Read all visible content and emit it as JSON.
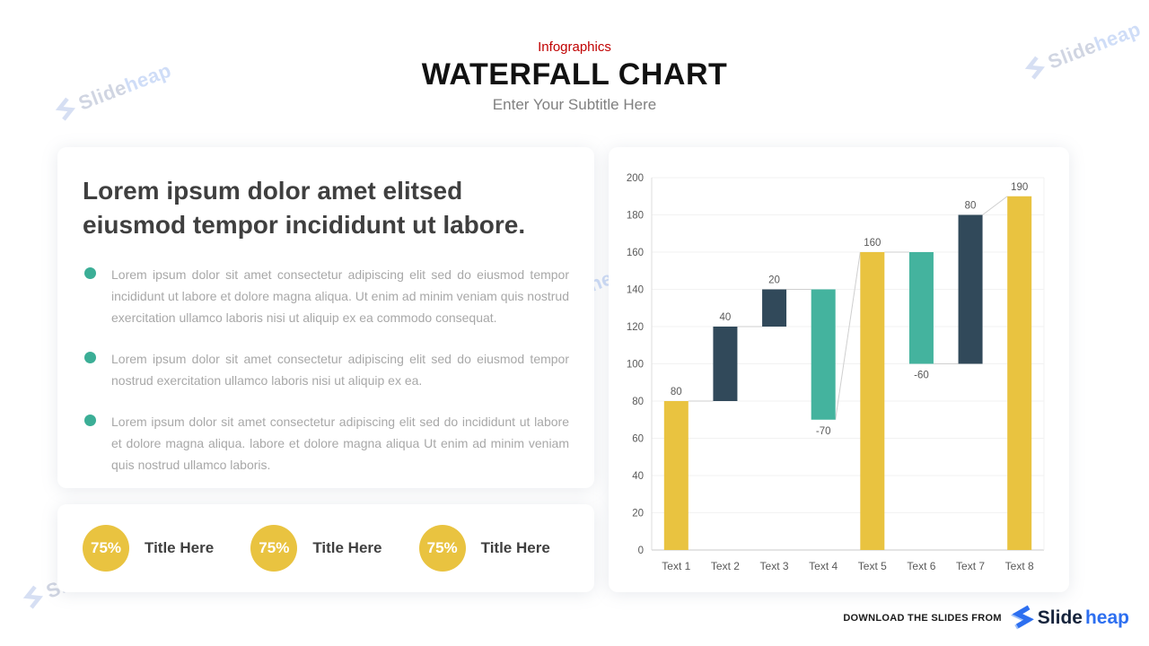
{
  "header": {
    "eyebrow": "Infographics",
    "title": "WATERFALL CHART",
    "subtitle": "Enter Your Subtitle Here"
  },
  "text_card": {
    "heading": "Lorem ipsum dolor amet elitsed eiusmod tempor incididunt ut labore.",
    "bullets": [
      "Lorem ipsum dolor sit amet consectetur adipiscing elit sed do eiusmod tempor incididunt ut labore et dolore magna aliqua. Ut enim ad minim veniam quis nostrud exercitation ullamco laboris nisi ut aliquip ex ea commodo consequat.",
      "Lorem ipsum dolor sit amet consectetur adipiscing elit sed do eiusmod tempor nostrud exercitation ullamco laboris nisi ut aliquip ex ea.",
      "Lorem ipsum dolor sit amet consectetur adipiscing elit sed do incididunt ut labore et dolore magna aliqua. labore et dolore magna aliqua Ut enim ad minim veniam quis nostrud ullamco laboris."
    ]
  },
  "stats": {
    "items": [
      {
        "percent": "75%",
        "label": "Title Here"
      },
      {
        "percent": "75%",
        "label": "Title Here"
      },
      {
        "percent": "75%",
        "label": "Title Here"
      }
    ]
  },
  "chart_data": {
    "type": "bar",
    "subtype": "waterfall",
    "title": "",
    "xlabel": "",
    "ylabel": "",
    "ylim": [
      0,
      200
    ],
    "ytick_step": 20,
    "grid": true,
    "categories": [
      "Text 1",
      "Text 2",
      "Text 3",
      "Text 4",
      "Text 5",
      "Text 6",
      "Text 7",
      "Text 8"
    ],
    "bars": [
      {
        "category": "Text 1",
        "value": 80,
        "start": 0,
        "end": 80,
        "role": "total",
        "color": "#e9c340",
        "data_label": "80",
        "label_position": "above"
      },
      {
        "category": "Text 2",
        "value": 40,
        "start": 80,
        "end": 120,
        "role": "increase",
        "color": "#31495a",
        "data_label": "40",
        "label_position": "above"
      },
      {
        "category": "Text 3",
        "value": 20,
        "start": 120,
        "end": 140,
        "role": "increase",
        "color": "#31495a",
        "data_label": "20",
        "label_position": "above"
      },
      {
        "category": "Text 4",
        "value": -70,
        "start": 140,
        "end": 70,
        "role": "decrease",
        "color": "#44b39e",
        "data_label": "-70",
        "label_position": "below"
      },
      {
        "category": "Text 5",
        "value": 160,
        "start": 0,
        "end": 160,
        "role": "total",
        "color": "#e9c340",
        "data_label": "160",
        "label_position": "above"
      },
      {
        "category": "Text 6",
        "value": -60,
        "start": 160,
        "end": 100,
        "role": "decrease",
        "color": "#44b39e",
        "data_label": "-60",
        "label_position": "below"
      },
      {
        "category": "Text 7",
        "value": 80,
        "start": 100,
        "end": 180,
        "role": "increase",
        "color": "#31495a",
        "data_label": "80",
        "label_position": "above"
      },
      {
        "category": "Text 8",
        "value": 190,
        "start": 0,
        "end": 190,
        "role": "total",
        "color": "#e9c340",
        "data_label": "190",
        "label_position": "above"
      }
    ],
    "connector_color": "#cfcfcf",
    "legend": null
  },
  "watermark": {
    "slide": "Slide",
    "heap": "heap"
  },
  "footer": {
    "download_text": "DOWNLOAD THE SLIDES FROM",
    "brand_slide": "Slide",
    "brand_heap": "heap"
  },
  "colors": {
    "accent_red": "#c00000",
    "bar_yellow": "#e9c340",
    "bar_navy": "#31495a",
    "bar_teal": "#44b39e",
    "bullet_teal": "#3bae96",
    "brand_blue": "#2d6ff0",
    "brand_dark": "#16243c"
  }
}
